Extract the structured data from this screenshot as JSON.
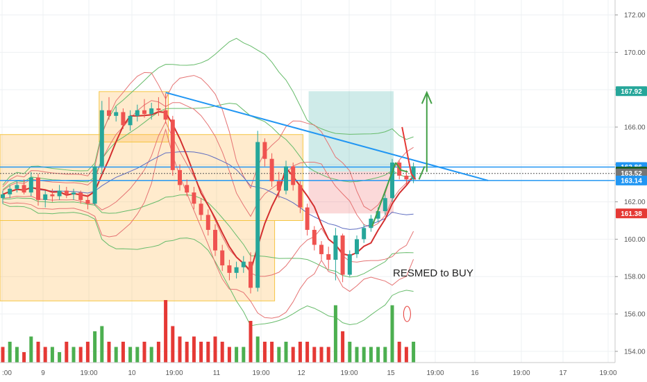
{
  "chart_data": {
    "type": "candlestick",
    "annotation": "RESMED  to BUY",
    "y_axis": {
      "range": [
        153.4,
        172.8
      ],
      "ticks": [
        "172.00",
        "170.00",
        "168.00",
        "166.00",
        "164.00",
        "162.00",
        "160.00",
        "158.00",
        "156.00",
        "154.00"
      ],
      "tick_values": [
        172,
        170,
        168,
        166,
        164,
        162,
        160,
        158,
        156,
        154
      ]
    },
    "x_axis": {
      "ticks": [
        ":00",
        "9",
        "19:00",
        "10",
        "19:00",
        "11",
        "19:00",
        "12",
        "19:00",
        "15",
        "19:00",
        "16",
        "19:00",
        "17",
        "19:00"
      ]
    },
    "price_tags": [
      {
        "label": "167.92",
        "value": 167.92,
        "color": "#26a69a"
      },
      {
        "label": "163.86",
        "value": 163.86,
        "color": "#2196f3"
      },
      {
        "label": "163.62",
        "value": 163.62,
        "color": "#1b5e20"
      },
      {
        "label": "163.52",
        "value": 163.52,
        "color": "#757575"
      },
      {
        "label": "163.14",
        "value": 163.14,
        "color": "#2196f3"
      },
      {
        "label": "161.38",
        "value": 161.38,
        "color": "#e53935"
      }
    ],
    "zones": [
      {
        "from_bar": 0,
        "to_bar": 42,
        "low": 161.0,
        "high": 165.6
      },
      {
        "from_bar": 0,
        "to_bar": 38,
        "low": 156.7,
        "high": 161.0
      },
      {
        "from_bar": 14,
        "to_bar": 23,
        "low": 165.2,
        "high": 167.9
      }
    ],
    "position": {
      "from_bar": 43,
      "to_bar": 55,
      "entry": 163.62,
      "target": 167.92,
      "stop": 161.38
    },
    "horizontal_lines": [
      163.86,
      163.52,
      163.14
    ],
    "trendline": {
      "from": [
        23,
        167.85
      ],
      "to": [
        46,
        163.14
      ]
    },
    "colors": {
      "up": "#26a69a",
      "down": "#ef5350",
      "vol_up": "#4caf50",
      "vol_down": "#e53935"
    },
    "candles": [
      [
        162.2,
        162.6,
        161.9,
        162.4
      ],
      [
        162.4,
        162.9,
        162.2,
        162.7
      ],
      [
        162.7,
        163.1,
        162.5,
        162.9
      ],
      [
        162.9,
        163.2,
        162.4,
        162.5
      ],
      [
        162.5,
        163.6,
        162.3,
        163.3
      ],
      [
        163.3,
        163.5,
        161.8,
        162.1
      ],
      [
        162.1,
        162.6,
        161.7,
        162.4
      ],
      [
        162.4,
        162.7,
        162.0,
        162.3
      ],
      [
        162.3,
        162.9,
        162.1,
        162.6
      ],
      [
        162.6,
        162.8,
        162.2,
        162.4
      ],
      [
        162.4,
        162.7,
        162.1,
        162.5
      ],
      [
        162.5,
        162.6,
        161.9,
        162.1
      ],
      [
        162.1,
        162.4,
        161.6,
        161.9
      ],
      [
        161.9,
        164.0,
        161.8,
        163.9
      ],
      [
        163.9,
        167.4,
        163.5,
        166.9
      ],
      [
        166.9,
        167.6,
        166.4,
        166.6
      ],
      [
        166.6,
        167.1,
        166.3,
        166.8
      ],
      [
        166.8,
        167.0,
        165.9,
        166.1
      ],
      [
        166.1,
        166.9,
        165.8,
        166.6
      ],
      [
        166.6,
        167.2,
        166.3,
        166.9
      ],
      [
        166.9,
        167.5,
        166.5,
        166.7
      ],
      [
        166.7,
        167.3,
        166.4,
        167.0
      ],
      [
        167.0,
        167.6,
        166.6,
        166.9
      ],
      [
        166.9,
        167.8,
        166.2,
        166.4
      ],
      [
        166.4,
        166.6,
        163.4,
        163.7
      ],
      [
        163.7,
        164.0,
        162.6,
        162.9
      ],
      [
        162.9,
        163.2,
        162.3,
        162.5
      ],
      [
        162.5,
        162.8,
        161.6,
        161.9
      ],
      [
        161.9,
        162.2,
        161.0,
        161.3
      ],
      [
        161.3,
        161.6,
        160.2,
        160.5
      ],
      [
        160.5,
        160.8,
        159.1,
        159.4
      ],
      [
        159.4,
        159.7,
        158.3,
        158.6
      ],
      [
        158.6,
        158.9,
        157.8,
        158.2
      ],
      [
        158.2,
        158.8,
        157.9,
        158.5
      ],
      [
        158.5,
        159.1,
        158.2,
        158.8
      ],
      [
        158.8,
        159.3,
        157.1,
        157.4
      ],
      [
        157.4,
        165.8,
        157.2,
        165.2
      ],
      [
        165.2,
        165.4,
        163.9,
        164.3
      ],
      [
        164.3,
        164.6,
        162.8,
        163.1
      ],
      [
        163.1,
        163.6,
        162.2,
        162.6
      ],
      [
        162.6,
        164.2,
        162.4,
        163.9
      ],
      [
        163.9,
        164.1,
        162.6,
        162.9
      ],
      [
        162.9,
        163.1,
        161.4,
        161.7
      ],
      [
        161.7,
        161.9,
        160.2,
        160.5
      ],
      [
        160.5,
        160.7,
        159.4,
        159.7
      ],
      [
        159.7,
        159.9,
        158.9,
        159.2
      ],
      [
        159.2,
        159.6,
        158.4,
        158.9
      ],
      [
        158.9,
        160.6,
        157.8,
        160.2
      ],
      [
        160.2,
        160.3,
        157.7,
        158.1
      ],
      [
        158.1,
        159.4,
        158.0,
        159.2
      ],
      [
        159.2,
        160.2,
        159.0,
        160.0
      ],
      [
        160.0,
        160.8,
        159.8,
        160.6
      ],
      [
        160.6,
        161.3,
        160.4,
        161.1
      ],
      [
        161.1,
        161.7,
        160.9,
        161.5
      ],
      [
        161.5,
        162.4,
        161.3,
        162.2
      ],
      [
        162.2,
        164.3,
        162.0,
        164.1
      ],
      [
        164.1,
        164.2,
        163.2,
        163.4
      ],
      [
        163.4,
        163.7,
        162.9,
        163.2
      ],
      [
        163.2,
        164.1,
        163.0,
        163.9
      ]
    ],
    "volume": [
      [
        3,
        0
      ],
      [
        4,
        1
      ],
      [
        3,
        1
      ],
      [
        2,
        0
      ],
      [
        5,
        1
      ],
      [
        4,
        0
      ],
      [
        3,
        0
      ],
      [
        3,
        1
      ],
      [
        2,
        1
      ],
      [
        4,
        0
      ],
      [
        3,
        1
      ],
      [
        3,
        0
      ],
      [
        4,
        0
      ],
      [
        6,
        1
      ],
      [
        7,
        1
      ],
      [
        4,
        0
      ],
      [
        3,
        1
      ],
      [
        4,
        0
      ],
      [
        3,
        1
      ],
      [
        3,
        1
      ],
      [
        4,
        0
      ],
      [
        3,
        1
      ],
      [
        4,
        0
      ],
      [
        12,
        0
      ],
      [
        7,
        0
      ],
      [
        5,
        0
      ],
      [
        4,
        0
      ],
      [
        5,
        0
      ],
      [
        4,
        0
      ],
      [
        4,
        0
      ],
      [
        5,
        0
      ],
      [
        4,
        0
      ],
      [
        3,
        0
      ],
      [
        3,
        1
      ],
      [
        3,
        1
      ],
      [
        8,
        0
      ],
      [
        5,
        1
      ],
      [
        4,
        0
      ],
      [
        4,
        0
      ],
      [
        3,
        1
      ],
      [
        4,
        1
      ],
      [
        3,
        0
      ],
      [
        4,
        0
      ],
      [
        4,
        0
      ],
      [
        3,
        0
      ],
      [
        3,
        0
      ],
      [
        3,
        0
      ],
      [
        11,
        1
      ],
      [
        6,
        0
      ],
      [
        4,
        1
      ],
      [
        3,
        1
      ],
      [
        3,
        1
      ],
      [
        3,
        1
      ],
      [
        3,
        1
      ],
      [
        3,
        1
      ],
      [
        11,
        1
      ],
      [
        4,
        0
      ],
      [
        3,
        0
      ],
      [
        4,
        1
      ]
    ]
  }
}
